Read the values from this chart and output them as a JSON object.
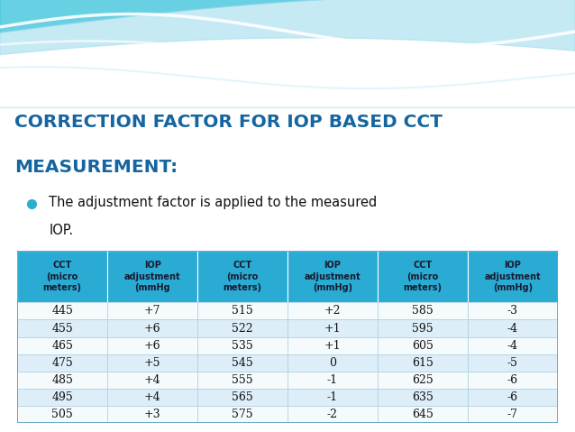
{
  "title_line1": "CORRECTION FACTOR FOR IOP BASED CCT",
  "title_line2": "MEASUREMENT:",
  "bullet_color": "#29AECE",
  "title_color": "#1565a0",
  "bg_color": "#ffffff",
  "header_bg": "#29ABD4",
  "header_text_color": "#1a1a2e",
  "row_bg_light": "#ddeef8",
  "row_bg_white": "#f5fafd",
  "col_headers": [
    "CCT\n(micro\nmeters)",
    "IOP\nadjustment\n(mmHg",
    "CCT\n(micro\nmeters)",
    "IOP\nadjustment\n(mmHg)",
    "CCT\n(micro\nmeters)",
    "IOP\nadjustment\n(mmHg)"
  ],
  "table_data": [
    [
      "445",
      "+7",
      "515",
      "+2",
      "585",
      "-3"
    ],
    [
      "455",
      "+6",
      "522",
      "+1",
      "595",
      "-4"
    ],
    [
      "465",
      "+6",
      "535",
      "+1",
      "605",
      "-4"
    ],
    [
      "475",
      "+5",
      "545",
      "0",
      "615",
      "-5"
    ],
    [
      "485",
      "+4",
      "555",
      "-1",
      "625",
      "-6"
    ],
    [
      "495",
      "+4",
      "565",
      "-1",
      "635",
      "-6"
    ],
    [
      "505",
      "+3",
      "575",
      "-2",
      "645",
      "-7"
    ]
  ],
  "wave_bg": "#b8e8f2",
  "wave_bg2": "#d6f0f8",
  "wave_colors": [
    "#ffffff",
    "#e0f5fa",
    "#c0ecf7"
  ],
  "wave_lwidths": [
    3.0,
    2.0,
    1.5
  ]
}
